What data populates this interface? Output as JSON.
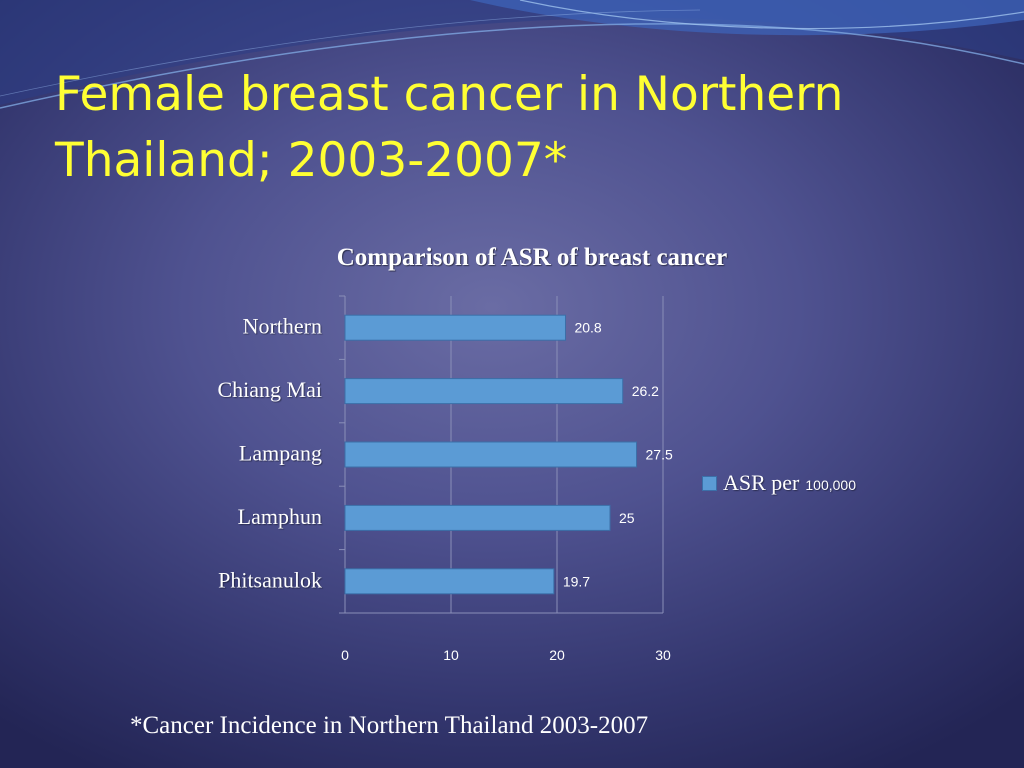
{
  "slide": {
    "title_lines": [
      "Female breast cancer in Northern",
      "Thailand; 2003-2007*"
    ],
    "footnote": "*Cancer Incidence in Northern Thailand 2003-2007"
  },
  "colors": {
    "title": "#ffff33",
    "bar": "#5b9bd5",
    "text": "#ffffff",
    "gridline": "#8a8fb8"
  },
  "chart_data": {
    "type": "bar",
    "orientation": "horizontal",
    "title": "Comparison of ASR of breast cancer",
    "categories": [
      "Northern",
      "Chiang Mai",
      "Lampang",
      "Lamphun",
      "Phitsanulok"
    ],
    "series": [
      {
        "name": "ASR per 100,000",
        "values": [
          20.8,
          26.2,
          27.5,
          25,
          19.7
        ]
      }
    ],
    "data_labels": [
      "20.8",
      "26.2",
      "27.5",
      "25",
      "19.7"
    ],
    "xlim": [
      0,
      30
    ],
    "xticks": [
      "0",
      "10",
      "20",
      "30"
    ],
    "grid": true,
    "legend": {
      "position": "right",
      "name_main": "ASR per",
      "name_unit": "100,000"
    }
  }
}
